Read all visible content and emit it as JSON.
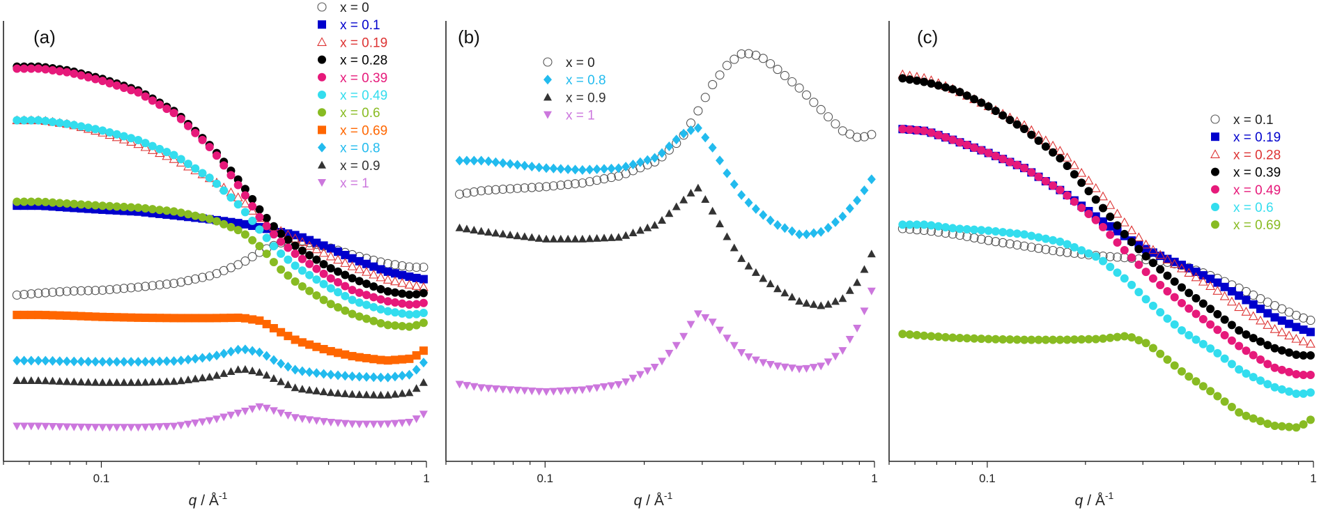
{
  "chart_data": [
    {
      "type": "scatter",
      "panel_label": "(a)",
      "xlabel_italic": "q",
      "xlabel_rest": " / Å",
      "xlabel_sup": "-1",
      "xscale": "log",
      "xlim": [
        0.05,
        1.0
      ],
      "ylim": [
        0,
        1
      ],
      "xticks": [
        {
          "value": 0.1,
          "label": "0.1"
        },
        {
          "value": 1,
          "label": "1"
        }
      ],
      "legend_position": "top-right",
      "series": [
        {
          "name": "x = 0",
          "marker": "circle-open",
          "color": "#555555",
          "x": [
            0.055,
            0.065,
            0.08,
            0.1,
            0.13,
            0.17,
            0.22,
            0.27,
            0.31,
            0.35,
            0.4,
            0.5,
            0.6,
            0.75,
            0.9,
            0.98
          ],
          "y": [
            0.38,
            0.385,
            0.39,
            0.392,
            0.4,
            0.41,
            0.43,
            0.46,
            0.49,
            0.51,
            0.52,
            0.5,
            0.48,
            0.46,
            0.45,
            0.45
          ]
        },
        {
          "name": "x = 0.1",
          "marker": "square",
          "color": "#0000cc",
          "x": [
            0.055,
            0.065,
            0.08,
            0.1,
            0.13,
            0.17,
            0.22,
            0.27,
            0.31,
            0.35,
            0.4,
            0.5,
            0.6,
            0.75,
            0.9,
            0.98
          ],
          "y": [
            0.605,
            0.605,
            0.6,
            0.595,
            0.59,
            0.58,
            0.57,
            0.56,
            0.55,
            0.54,
            0.53,
            0.5,
            0.47,
            0.44,
            0.425,
            0.42
          ]
        },
        {
          "name": "x = 0.19",
          "marker": "triangle-open",
          "color": "#dd3333",
          "x": [
            0.055,
            0.065,
            0.08,
            0.1,
            0.13,
            0.17,
            0.22,
            0.27,
            0.31,
            0.35,
            0.4,
            0.5,
            0.6,
            0.75,
            0.9,
            0.98
          ],
          "y": [
            0.82,
            0.82,
            0.81,
            0.79,
            0.76,
            0.72,
            0.67,
            0.62,
            0.57,
            0.545,
            0.52,
            0.48,
            0.45,
            0.42,
            0.405,
            0.4
          ]
        },
        {
          "name": "x = 0.28",
          "marker": "circle",
          "color": "#000000",
          "x": [
            0.055,
            0.065,
            0.08,
            0.1,
            0.13,
            0.17,
            0.22,
            0.27,
            0.31,
            0.35,
            0.4,
            0.5,
            0.6,
            0.75,
            0.9,
            0.98
          ],
          "y": [
            0.955,
            0.955,
            0.945,
            0.925,
            0.895,
            0.84,
            0.75,
            0.66,
            0.59,
            0.54,
            0.5,
            0.45,
            0.42,
            0.39,
            0.38,
            0.385
          ]
        },
        {
          "name": "x = 0.39",
          "marker": "circle",
          "color": "#e6197a",
          "x": [
            0.055,
            0.065,
            0.08,
            0.1,
            0.13,
            0.17,
            0.22,
            0.27,
            0.31,
            0.35,
            0.4,
            0.5,
            0.6,
            0.75,
            0.9,
            0.98
          ],
          "y": [
            0.95,
            0.95,
            0.94,
            0.92,
            0.89,
            0.835,
            0.745,
            0.645,
            0.57,
            0.52,
            0.48,
            0.425,
            0.39,
            0.365,
            0.355,
            0.36
          ]
        },
        {
          "name": "x = 0.49",
          "marker": "circle",
          "color": "#33ddee",
          "x": [
            0.055,
            0.065,
            0.08,
            0.1,
            0.13,
            0.17,
            0.22,
            0.27,
            0.31,
            0.35,
            0.4,
            0.5,
            0.6,
            0.75,
            0.9,
            0.98
          ],
          "y": [
            0.82,
            0.82,
            0.81,
            0.795,
            0.77,
            0.73,
            0.67,
            0.6,
            0.54,
            0.49,
            0.45,
            0.4,
            0.365,
            0.34,
            0.33,
            0.335
          ]
        },
        {
          "name": "x = 0.6",
          "marker": "circle",
          "color": "#88bb22",
          "x": [
            0.055,
            0.065,
            0.08,
            0.1,
            0.13,
            0.17,
            0.22,
            0.27,
            0.31,
            0.35,
            0.4,
            0.5,
            0.6,
            0.75,
            0.9,
            0.98
          ],
          "y": [
            0.615,
            0.615,
            0.61,
            0.605,
            0.6,
            0.59,
            0.57,
            0.54,
            0.5,
            0.45,
            0.41,
            0.36,
            0.33,
            0.305,
            0.3,
            0.31
          ]
        },
        {
          "name": "x = 0.69",
          "marker": "square",
          "color": "#ff6600",
          "x": [
            0.055,
            0.065,
            0.08,
            0.1,
            0.13,
            0.17,
            0.22,
            0.27,
            0.31,
            0.35,
            0.4,
            0.5,
            0.6,
            0.75,
            0.9,
            0.98
          ],
          "y": [
            0.33,
            0.33,
            0.328,
            0.325,
            0.323,
            0.322,
            0.322,
            0.323,
            0.315,
            0.29,
            0.265,
            0.24,
            0.225,
            0.215,
            0.22,
            0.24
          ]
        },
        {
          "name": "x = 0.8",
          "marker": "diamond",
          "color": "#22bbee",
          "x": [
            0.055,
            0.065,
            0.08,
            0.1,
            0.13,
            0.17,
            0.22,
            0.27,
            0.31,
            0.35,
            0.4,
            0.5,
            0.6,
            0.75,
            0.9,
            0.98
          ],
          "y": [
            0.215,
            0.215,
            0.213,
            0.212,
            0.212,
            0.214,
            0.225,
            0.245,
            0.235,
            0.21,
            0.19,
            0.18,
            0.175,
            0.172,
            0.18,
            0.21
          ]
        },
        {
          "name": "x = 0.9",
          "marker": "triangle",
          "color": "#333333",
          "x": [
            0.055,
            0.065,
            0.08,
            0.1,
            0.13,
            0.17,
            0.22,
            0.27,
            0.31,
            0.35,
            0.4,
            0.5,
            0.6,
            0.75,
            0.9,
            0.98
          ],
          "y": [
            0.165,
            0.165,
            0.162,
            0.16,
            0.16,
            0.163,
            0.175,
            0.195,
            0.185,
            0.165,
            0.145,
            0.135,
            0.13,
            0.128,
            0.135,
            0.16
          ]
        },
        {
          "name": "x = 1",
          "marker": "triangle-down",
          "color": "#cc77dd",
          "x": [
            0.055,
            0.065,
            0.08,
            0.1,
            0.13,
            0.17,
            0.22,
            0.27,
            0.31,
            0.35,
            0.4,
            0.5,
            0.6,
            0.75,
            0.9,
            0.98
          ],
          "y": [
            0.05,
            0.05,
            0.048,
            0.047,
            0.047,
            0.05,
            0.065,
            0.085,
            0.1,
            0.085,
            0.07,
            0.06,
            0.055,
            0.055,
            0.06,
            0.08
          ]
        }
      ]
    },
    {
      "type": "scatter",
      "panel_label": "(b)",
      "xlabel_italic": "q",
      "xlabel_rest": " / Å",
      "xlabel_sup": "-1",
      "xscale": "log",
      "xlim": [
        0.05,
        1.0
      ],
      "ylim": [
        0,
        1
      ],
      "xticks": [
        {
          "value": 0.1,
          "label": "0.1"
        },
        {
          "value": 1,
          "label": "1"
        }
      ],
      "legend_position": "top-left",
      "series": [
        {
          "name": "x = 0",
          "marker": "circle-open",
          "color": "#555555",
          "x": [
            0.055,
            0.065,
            0.08,
            0.1,
            0.13,
            0.17,
            0.22,
            0.26,
            0.29,
            0.32,
            0.36,
            0.4,
            0.45,
            0.5,
            0.6,
            0.7,
            0.8,
            0.9,
            0.98
          ],
          "y": [
            0.61,
            0.62,
            0.625,
            0.63,
            0.64,
            0.66,
            0.7,
            0.76,
            0.83,
            0.9,
            0.96,
            0.99,
            0.98,
            0.95,
            0.89,
            0.83,
            0.78,
            0.76,
            0.77
          ]
        },
        {
          "name": "x = 0.8",
          "marker": "diamond",
          "color": "#22bbee",
          "x": [
            0.055,
            0.065,
            0.08,
            0.1,
            0.13,
            0.17,
            0.22,
            0.26,
            0.29,
            0.32,
            0.36,
            0.4,
            0.45,
            0.5,
            0.6,
            0.7,
            0.8,
            0.9,
            0.98
          ],
          "y": [
            0.7,
            0.7,
            0.69,
            0.68,
            0.675,
            0.68,
            0.71,
            0.77,
            0.79,
            0.74,
            0.66,
            0.6,
            0.56,
            0.53,
            0.5,
            0.51,
            0.55,
            0.6,
            0.65
          ]
        },
        {
          "name": "x = 0.9",
          "marker": "triangle",
          "color": "#333333",
          "x": [
            0.055,
            0.065,
            0.08,
            0.1,
            0.13,
            0.17,
            0.22,
            0.26,
            0.29,
            0.32,
            0.36,
            0.4,
            0.45,
            0.5,
            0.6,
            0.7,
            0.8,
            0.9,
            0.98
          ],
          "y": [
            0.52,
            0.51,
            0.5,
            0.49,
            0.49,
            0.495,
            0.53,
            0.59,
            0.63,
            0.57,
            0.49,
            0.43,
            0.39,
            0.36,
            0.32,
            0.31,
            0.33,
            0.38,
            0.45
          ]
        },
        {
          "name": "x = 1",
          "marker": "triangle-down",
          "color": "#cc77dd",
          "x": [
            0.055,
            0.065,
            0.08,
            0.1,
            0.13,
            0.17,
            0.22,
            0.26,
            0.29,
            0.32,
            0.36,
            0.4,
            0.45,
            0.5,
            0.6,
            0.7,
            0.8,
            0.9,
            0.98
          ],
          "y": [
            0.1,
            0.09,
            0.085,
            0.08,
            0.085,
            0.1,
            0.15,
            0.22,
            0.29,
            0.27,
            0.22,
            0.18,
            0.16,
            0.15,
            0.14,
            0.15,
            0.19,
            0.26,
            0.35
          ]
        }
      ]
    },
    {
      "type": "scatter",
      "panel_label": "(c)",
      "xlabel_italic": "q",
      "xlabel_rest": " / Å",
      "xlabel_sup": "-1",
      "xscale": "log",
      "xlim": [
        0.05,
        1.0
      ],
      "ylim": [
        0,
        1
      ],
      "xticks": [
        {
          "value": 0.1,
          "label": "0.1"
        },
        {
          "value": 1,
          "label": "1"
        }
      ],
      "legend_position": "right",
      "series": [
        {
          "name": "x = 0.1",
          "marker": "circle-open",
          "color": "#555555",
          "x": [
            0.055,
            0.065,
            0.08,
            0.1,
            0.13,
            0.17,
            0.22,
            0.27,
            0.31,
            0.35,
            0.4,
            0.5,
            0.6,
            0.75,
            0.9,
            0.98
          ],
          "y": [
            0.575,
            0.57,
            0.56,
            0.545,
            0.53,
            0.515,
            0.505,
            0.5,
            0.495,
            0.49,
            0.48,
            0.45,
            0.42,
            0.38,
            0.35,
            0.34
          ]
        },
        {
          "name": "x = 0.19",
          "marker": "square",
          "color": "#0000cc",
          "x": [
            0.055,
            0.065,
            0.08,
            0.1,
            0.13,
            0.17,
            0.22,
            0.27,
            0.31,
            0.35,
            0.4,
            0.5,
            0.6,
            0.75,
            0.9,
            0.98
          ],
          "y": [
            0.83,
            0.825,
            0.8,
            0.77,
            0.73,
            0.67,
            0.6,
            0.55,
            0.52,
            0.5,
            0.48,
            0.44,
            0.4,
            0.35,
            0.32,
            0.31
          ]
        },
        {
          "name": "x = 0.28",
          "marker": "triangle-open",
          "color": "#dd3333",
          "x": [
            0.055,
            0.065,
            0.08,
            0.1,
            0.13,
            0.17,
            0.22,
            0.27,
            0.31,
            0.35,
            0.4,
            0.5,
            0.6,
            0.75,
            0.9,
            0.98
          ],
          "y": [
            0.97,
            0.96,
            0.93,
            0.89,
            0.84,
            0.77,
            0.67,
            0.58,
            0.53,
            0.5,
            0.47,
            0.42,
            0.37,
            0.32,
            0.29,
            0.28
          ]
        },
        {
          "name": "x = 0.39",
          "marker": "circle",
          "color": "#000000",
          "x": [
            0.055,
            0.065,
            0.08,
            0.1,
            0.13,
            0.17,
            0.22,
            0.27,
            0.31,
            0.35,
            0.4,
            0.5,
            0.6,
            0.75,
            0.9,
            0.98
          ],
          "y": [
            0.96,
            0.95,
            0.93,
            0.89,
            0.83,
            0.75,
            0.64,
            0.55,
            0.5,
            0.46,
            0.42,
            0.36,
            0.31,
            0.27,
            0.25,
            0.25
          ]
        },
        {
          "name": "x = 0.49",
          "marker": "circle",
          "color": "#e6197a",
          "x": [
            0.055,
            0.065,
            0.08,
            0.1,
            0.13,
            0.17,
            0.22,
            0.27,
            0.31,
            0.35,
            0.4,
            0.5,
            0.6,
            0.75,
            0.9,
            0.98
          ],
          "y": [
            0.83,
            0.825,
            0.8,
            0.77,
            0.73,
            0.67,
            0.59,
            0.51,
            0.46,
            0.42,
            0.38,
            0.32,
            0.27,
            0.22,
            0.2,
            0.2
          ]
        },
        {
          "name": "x = 0.6",
          "marker": "circle",
          "color": "#33ddee",
          "x": [
            0.055,
            0.065,
            0.08,
            0.1,
            0.13,
            0.17,
            0.22,
            0.27,
            0.31,
            0.35,
            0.4,
            0.5,
            0.6,
            0.75,
            0.9,
            0.98
          ],
          "y": [
            0.585,
            0.585,
            0.575,
            0.57,
            0.56,
            0.54,
            0.5,
            0.44,
            0.39,
            0.35,
            0.31,
            0.26,
            0.21,
            0.17,
            0.15,
            0.155
          ]
        },
        {
          "name": "x = 0.69",
          "marker": "circle",
          "color": "#88bb22",
          "x": [
            0.055,
            0.065,
            0.08,
            0.1,
            0.13,
            0.17,
            0.22,
            0.27,
            0.31,
            0.35,
            0.4,
            0.5,
            0.6,
            0.75,
            0.9,
            0.98
          ],
          "y": [
            0.305,
            0.3,
            0.295,
            0.292,
            0.29,
            0.29,
            0.292,
            0.3,
            0.28,
            0.245,
            0.205,
            0.15,
            0.1,
            0.07,
            0.065,
            0.085
          ]
        }
      ]
    }
  ]
}
